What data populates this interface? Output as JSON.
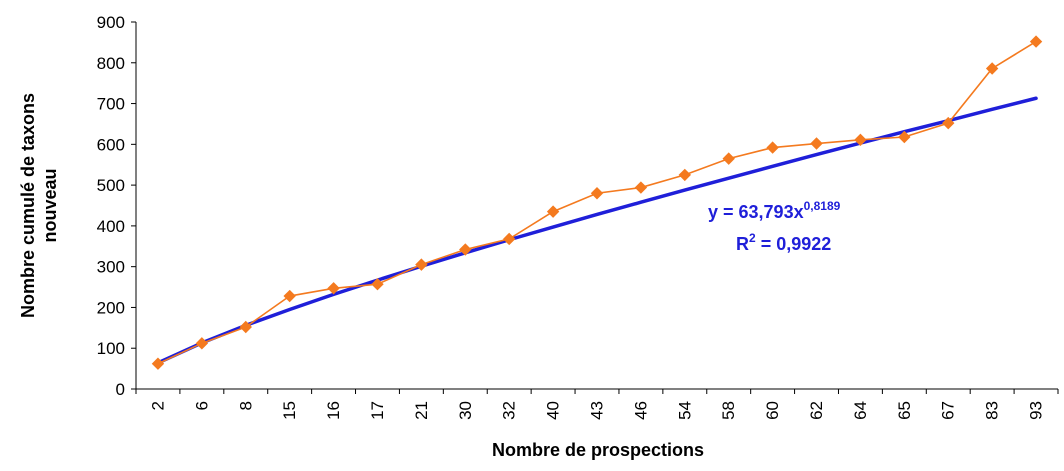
{
  "chart_data": {
    "type": "line",
    "xlabel": "Nombre de prospections",
    "ylabel": "Nombre cumulé de taxons nouveau",
    "ylim": [
      0,
      900
    ],
    "yticks": [
      0,
      100,
      200,
      300,
      400,
      500,
      600,
      700,
      800,
      900
    ],
    "categories": [
      "2",
      "6",
      "8",
      "15",
      "16",
      "17",
      "21",
      "30",
      "32",
      "40",
      "43",
      "46",
      "54",
      "58",
      "60",
      "62",
      "64",
      "65",
      "67",
      "83",
      "93"
    ],
    "series": [
      {
        "type": "line-with-markers",
        "color": "#f47a1f",
        "marker": "diamond",
        "values": [
          62,
          112,
          152,
          228,
          247,
          257,
          305,
          342,
          368,
          435,
          480,
          494,
          525,
          565,
          592,
          602,
          611,
          618,
          652,
          786,
          852
        ]
      },
      {
        "type": "trendline-power",
        "color": "#1f1fd9",
        "values": [
          64,
          113,
          156,
          195,
          232,
          267,
          301,
          334,
          366,
          397,
          428,
          458,
          488,
          517,
          546,
          575,
          603,
          631,
          658,
          686,
          713
        ]
      }
    ],
    "annotation": {
      "equation_main": "y = 63,793x",
      "equation_exponent": "0,8189",
      "r2_label": "R",
      "r2_superscript": "2",
      "r2_value": " = 0,9922"
    },
    "grid": false,
    "legend": "none"
  }
}
